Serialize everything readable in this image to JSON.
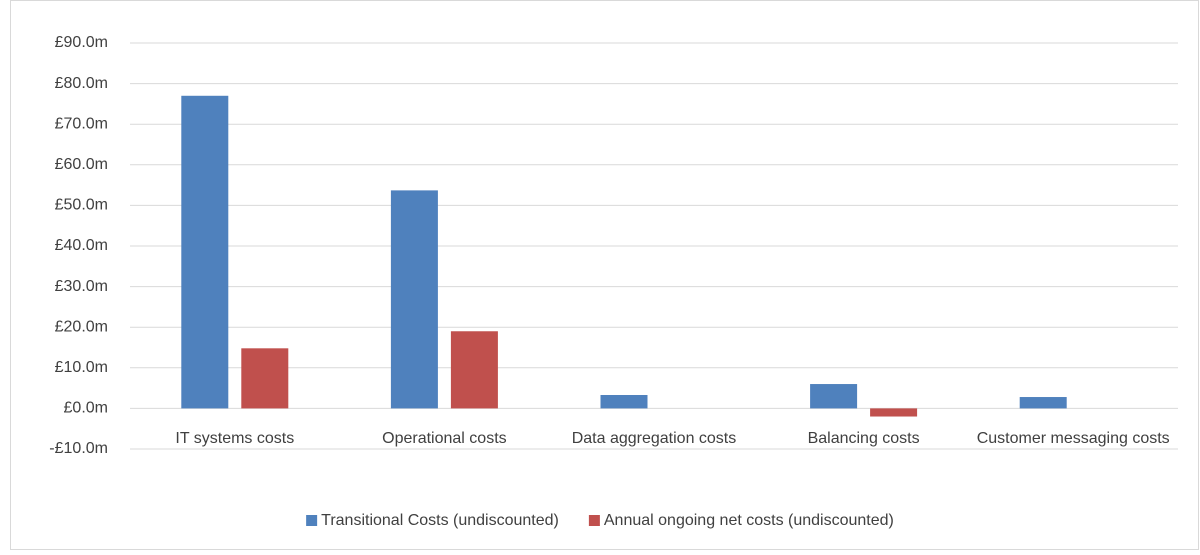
{
  "chart_data": {
    "type": "bar",
    "categories": [
      "IT systems costs",
      "Operational costs",
      "Data aggregation costs",
      "Balancing costs",
      "Customer messaging costs"
    ],
    "series": [
      {
        "name": "Transitional Costs (undiscounted)",
        "color": "#4f81bd",
        "values": [
          77,
          53.7,
          3.3,
          6,
          2.8
        ]
      },
      {
        "name": "Annual ongoing net costs (undiscounted)",
        "color": "#c0504d",
        "values": [
          14.8,
          19,
          0,
          -2,
          0
        ]
      }
    ],
    "ylim": [
      -10,
      90
    ],
    "yticks": [
      {
        "value": -10,
        "label": "-£10.0m"
      },
      {
        "value": 0,
        "label": "£0.0m"
      },
      {
        "value": 10,
        "label": "£10.0m"
      },
      {
        "value": 20,
        "label": "£20.0m"
      },
      {
        "value": 30,
        "label": "£30.0m"
      },
      {
        "value": 40,
        "label": "£40.0m"
      },
      {
        "value": 50,
        "label": "£50.0m"
      },
      {
        "value": 60,
        "label": "£60.0m"
      },
      {
        "value": 70,
        "label": "£70.0m"
      },
      {
        "value": 80,
        "label": "£80.0m"
      },
      {
        "value": 90,
        "label": "£90.0m"
      }
    ],
    "grid": true,
    "legend": "bottom"
  }
}
